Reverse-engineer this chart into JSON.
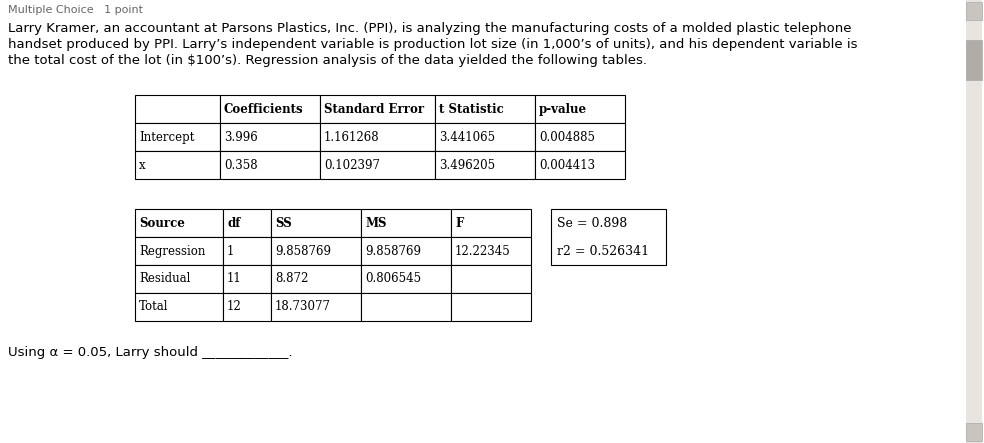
{
  "bg_color": "#ffffff",
  "header_text": "Multiple Choice   1 point",
  "paragraph_lines": [
    "Larry Kramer, an accountant at Parsons Plastics, Inc. (PPI), is analyzing the manufacturing costs of a molded plastic telephone",
    "handset produced by PPI. Larry’s independent variable is production lot size (in 1,000’s of units), and his dependent variable is",
    "the total cost of the lot (in $100’s). Regression analysis of the data yielded the following tables."
  ],
  "table1_headers": [
    "",
    "Coefficients",
    "Standard Error",
    "t Statistic",
    "p-value"
  ],
  "table1_rows": [
    [
      "Intercept",
      "3.996",
      "1.161268",
      "3.441065",
      "0.004885"
    ],
    [
      "x",
      "0.358",
      "0.102397",
      "3.496205",
      "0.004413"
    ]
  ],
  "table2_headers": [
    "Source",
    "df",
    "SS",
    "MS",
    "F"
  ],
  "table2_rows": [
    [
      "Regression",
      "1",
      "9.858769",
      "9.858769",
      "12.22345"
    ],
    [
      "Residual",
      "11",
      "8.872",
      "0.806545",
      ""
    ],
    [
      "Total",
      "12",
      "18.73077",
      "",
      ""
    ]
  ],
  "se_text": "Se = 0.898",
  "r2_text": "r2 = 0.526341",
  "footer_text": "Using α = 0.05, Larry should _____________."
}
